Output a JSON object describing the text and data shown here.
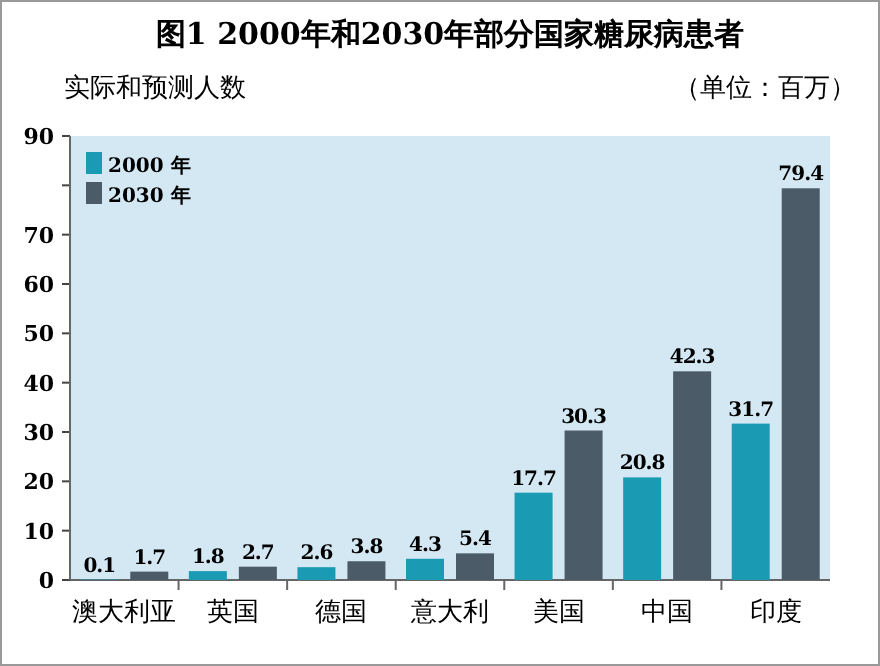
{
  "chart_data": {
    "type": "bar",
    "title": "图1  2000年和2030年部分国家糖尿病患者",
    "subtitle": "实际和预测人数",
    "annotations": [
      "（单位：百万）"
    ],
    "categories": [
      "澳大利亚",
      "英国",
      "德国",
      "意大利",
      "美国",
      "中国",
      "印度"
    ],
    "series": [
      {
        "name": "2000 年",
        "color": "#1b9bb3",
        "values": [
          0.1,
          1.8,
          2.6,
          4.3,
          17.7,
          20.8,
          31.7
        ]
      },
      {
        "name": "2030 年",
        "color": "#4b5b68",
        "values": [
          1.7,
          2.7,
          3.8,
          5.4,
          30.3,
          42.3,
          79.4
        ]
      }
    ],
    "ylim": [
      0,
      90
    ],
    "yticks": [
      0,
      10,
      20,
      30,
      40,
      50,
      60,
      70,
      {
        "value": 80,
        "label": null
      },
      90
    ],
    "data_labels": true,
    "legend": "top left"
  }
}
